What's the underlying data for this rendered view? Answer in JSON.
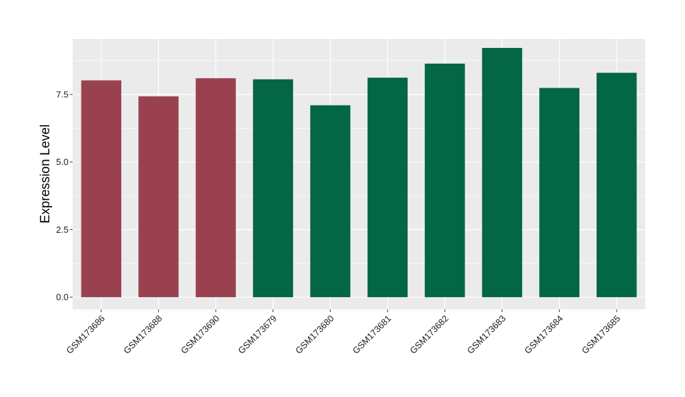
{
  "chart_data": {
    "type": "bar",
    "ylabel": "Expression Level",
    "xlabel": "",
    "ylim": [
      -0.45,
      9.55
    ],
    "yticks": [
      0.0,
      2.5,
      5.0,
      7.5
    ],
    "ytick_labels": [
      "0.0",
      "2.5",
      "5.0",
      "7.5"
    ],
    "grid": true,
    "categories": [
      "GSM173686",
      "GSM173688",
      "GSM173690",
      "GSM173679",
      "GSM173680",
      "GSM173681",
      "GSM173682",
      "GSM173683",
      "GSM173684",
      "GSM173685"
    ],
    "values": [
      8.02,
      7.43,
      8.1,
      8.06,
      7.1,
      8.12,
      8.64,
      9.22,
      7.74,
      8.3
    ],
    "groups": [
      0,
      0,
      0,
      1,
      1,
      1,
      1,
      1,
      1,
      1
    ],
    "group_colors": [
      "#99414f",
      "#036644"
    ],
    "panel_background": "#ebebeb",
    "grid_color": "#ffffff"
  }
}
